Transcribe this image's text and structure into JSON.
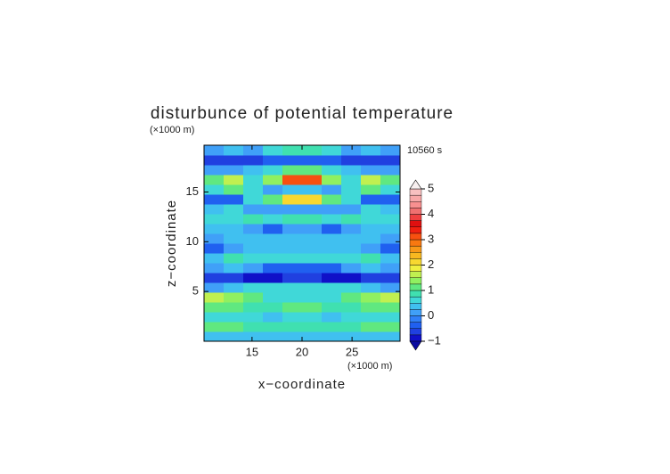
{
  "chart_data": {
    "type": "contour",
    "title": "disturbunce of potential temperature",
    "time_label": "10560 s",
    "x_label": "x−coordinate",
    "x_unit": "(×1000 m)",
    "y_label": "z−coordinate",
    "y_unit": "(×1000 m)",
    "xlim": [
      10.2,
      29.8
    ],
    "xticks": [
      15,
      20,
      25
    ],
    "ylim": [
      0,
      19.7
    ],
    "yticks": [
      5,
      10,
      15
    ],
    "z": [
      [
        0.3,
        0.3,
        0.3,
        0.3,
        0.3,
        0.3,
        0.3,
        0.3,
        0.3,
        0.3
      ],
      [
        1.0,
        1.0,
        0.9,
        0.9,
        0.9,
        0.9,
        0.9,
        0.9,
        1.0,
        1.0
      ],
      [
        0.7,
        0.6,
        0.5,
        0.3,
        0.5,
        0.5,
        0.3,
        0.5,
        0.6,
        0.7
      ],
      [
        1.2,
        1.0,
        0.8,
        0.8,
        1.0,
        1.0,
        0.8,
        0.8,
        1.0,
        1.2
      ],
      [
        1.6,
        1.4,
        1.0,
        0.6,
        0.5,
        0.5,
        0.6,
        1.0,
        1.4,
        1.6
      ],
      [
        0.2,
        0.3,
        0.5,
        0.6,
        0.6,
        0.6,
        0.6,
        0.5,
        0.3,
        0.2
      ],
      [
        -0.6,
        -0.6,
        -0.8,
        -0.8,
        -0.7,
        -0.7,
        -0.8,
        -0.8,
        -0.6,
        -0.6
      ],
      [
        0.2,
        0.3,
        0.1,
        -0.3,
        -0.5,
        -0.5,
        -0.3,
        0.1,
        0.3,
        0.2
      ],
      [
        0.4,
        0.8,
        0.6,
        0.5,
        0.5,
        0.5,
        0.5,
        0.6,
        0.8,
        0.4
      ],
      [
        -0.4,
        0.1,
        0.3,
        0.3,
        0.3,
        0.3,
        0.3,
        0.3,
        0.1,
        -0.4
      ],
      [
        0.2,
        0.3,
        0.3,
        0.3,
        0.4,
        0.4,
        0.3,
        0.3,
        0.3,
        0.2
      ],
      [
        0.3,
        0.4,
        0.1,
        -0.4,
        0.2,
        0.2,
        -0.4,
        0.1,
        0.4,
        0.3
      ],
      [
        0.6,
        0.7,
        0.8,
        0.7,
        0.8,
        0.8,
        0.7,
        0.8,
        0.7,
        0.6
      ],
      [
        0.3,
        0.6,
        0.2,
        0.0,
        0.2,
        0.2,
        0.0,
        0.2,
        0.6,
        0.3
      ],
      [
        -0.5,
        -0.3,
        0.5,
        1.2,
        2.0,
        2.0,
        1.2,
        0.5,
        -0.3,
        -0.5
      ],
      [
        0.6,
        1.0,
        0.5,
        0.2,
        0.4,
        0.4,
        0.2,
        0.5,
        1.0,
        0.6
      ],
      [
        1.2,
        1.6,
        0.6,
        1.3,
        3.0,
        3.0,
        1.3,
        0.6,
        1.6,
        1.2
      ],
      [
        0.0,
        0.1,
        0.3,
        0.6,
        1.0,
        1.0,
        0.6,
        0.3,
        0.1,
        0.0
      ],
      [
        -0.7,
        -0.7,
        -0.6,
        -0.3,
        -0.4,
        -0.4,
        -0.3,
        -0.6,
        -0.7,
        -0.7
      ],
      [
        0.1,
        0.4,
        0.2,
        0.6,
        0.8,
        0.8,
        0.6,
        0.2,
        0.4,
        0.1
      ]
    ],
    "clim": [
      -1,
      5
    ],
    "cticks": [
      {
        "value": -1,
        "label": "−1"
      },
      0,
      1,
      2,
      3,
      4,
      5
    ],
    "colors": [
      "#1010c8",
      "#2040e0",
      "#2060f0",
      "#3080f8",
      "#40a0f8",
      "#40c0f0",
      "#40d8d8",
      "#40e0b0",
      "#60e880",
      "#90f060",
      "#c0f050",
      "#f0f040",
      "#f8d830",
      "#f8b820",
      "#f89818",
      "#f87810",
      "#f85010",
      "#f02010",
      "#e01010",
      "#f04040",
      "#f07070",
      "#f89090",
      "#f8a8a8",
      "#f8c0c0"
    ],
    "under_color": "#0a0aa0",
    "over_color": "#f8f0f0"
  }
}
